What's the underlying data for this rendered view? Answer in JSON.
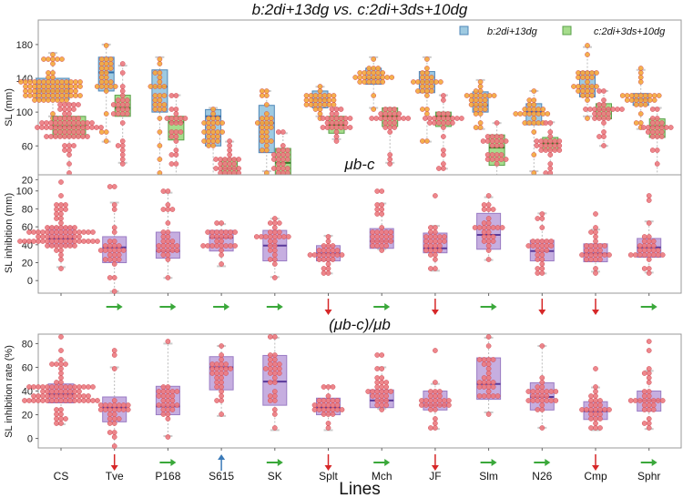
{
  "chart_data": {
    "type": "box",
    "xlabel": "Lines",
    "categories": [
      "CS",
      "Tve",
      "P168",
      "S615",
      "SK",
      "Splt",
      "Mch",
      "JF",
      "Slm",
      "N26",
      "Cmp",
      "Sphr"
    ],
    "colors": {
      "b_box": "#9ecae1",
      "b_edge": "#4f87b8",
      "b_dot": "#f5a83a",
      "c_box": "#a6dc8c",
      "c_edge": "#5aa04a",
      "c_dot": "#ec7a80",
      "purple_box": "#c6aee0",
      "purple_edge": "#9a7cc4",
      "median": "#5a3a9a",
      "up": "#3a7ab8",
      "right": "#3aa83a",
      "down": "#d62728"
    },
    "panels": [
      {
        "title": "b:2di+13dg  vs. c:2di+3ds+10dg",
        "ylabel": "SL (mm)",
        "yticks": [
          20,
          60,
          100,
          140,
          180
        ],
        "ylim": [
          1,
          209
        ],
        "legend": {
          "position": "top-right",
          "entries": [
            "b:2di+13dg",
            "c:2di+3ds+10dg"
          ]
        },
        "series": [
          {
            "name": "b:2di+13dg",
            "boxes": [
              [
                95,
                115,
                125,
                140,
                170
              ],
              [
                65,
                125,
                147,
                165,
                180
              ],
              [
                20,
                100,
                130,
                150,
                165
              ],
              [
                20,
                60,
                95,
                103,
                105
              ],
              [
                30,
                52,
                87,
                108,
                125
              ],
              [
                95,
                105,
                115,
                125,
                130
              ],
              [
                105,
                133,
                140,
                152,
                165
              ],
              [
                65,
                123,
                136,
                148,
                165
              ],
              [
                80,
                100,
                108,
                124,
                138
              ],
              [
                30,
                85,
                100,
                110,
                125
              ],
              [
                95,
                118,
                130,
                148,
                177
              ],
              [
                80,
                108,
                115,
                122,
                150
              ]
            ]
          },
          {
            "name": "c:2di+3ds+10dg",
            "boxes": [
              [
                20,
                70,
                83,
                95,
                110
              ],
              [
                40,
                95,
                105,
                120,
                155
              ],
              [
                20,
                67,
                88,
                95,
                120
              ],
              [
                20,
                25,
                33,
                45,
                65
              ],
              [
                12,
                25,
                40,
                57,
                75
              ],
              [
                68,
                75,
                85,
                95,
                105
              ],
              [
                40,
                83,
                95,
                105,
                105
              ],
              [
                33,
                83,
                95,
                100,
                120
              ],
              [
                12,
                37,
                58,
                73,
                87
              ],
              [
                20,
                55,
                63,
                70,
                88
              ],
              [
                60,
                92,
                103,
                110,
                125
              ],
              [
                20,
                70,
                83,
                92,
                105
              ]
            ]
          }
        ],
        "arrows": [
          [],
          [
            "up",
            "up"
          ],
          [
            "right",
            "right"
          ],
          [
            "down",
            "down"
          ],
          [
            "down",
            "down"
          ],
          [
            "down",
            "right"
          ],
          [
            "up",
            "up"
          ],
          [
            "right",
            "up"
          ],
          [
            "down",
            "down"
          ],
          [
            "down",
            "down"
          ],
          [
            "right",
            "up"
          ],
          [
            "down",
            "right"
          ]
        ]
      },
      {
        "title": "μb-c",
        "ylabel": "SL inhibition (mm)",
        "yticks": [
          0,
          20,
          40,
          60,
          80,
          100
        ],
        "ylim": [
          -14,
          118
        ],
        "boxes": [
          [
            15,
            38,
            47,
            60,
            85
          ],
          [
            -12,
            20,
            37,
            49,
            87
          ],
          [
            3,
            25,
            33,
            54,
            98
          ],
          [
            16,
            33,
            48,
            56,
            63
          ],
          [
            4,
            22,
            39,
            56,
            69
          ],
          [
            8,
            22,
            30,
            39,
            50
          ],
          [
            35,
            36,
            44,
            58,
            86
          ],
          [
            11,
            31,
            36,
            53,
            61
          ],
          [
            23,
            35,
            51,
            75,
            93
          ],
          [
            8,
            22,
            33,
            45,
            75
          ],
          [
            10,
            21,
            30,
            41,
            57
          ],
          [
            9,
            26,
            37,
            47,
            66
          ]
        ],
        "outliers": [
          [
            96,
            108
          ],
          [
            104,
            104
          ],
          [
            100
          ],
          [],
          [],
          [],
          [
            100,
            100
          ],
          [
            96
          ],
          [],
          [],
          [
            73
          ],
          [
            89,
            96
          ]
        ],
        "arrows": [
          "",
          "right",
          "right",
          "right",
          "right",
          "down",
          "right",
          "down",
          "right",
          "down",
          "down",
          "right"
        ]
      },
      {
        "title": "(μb-c)/μb",
        "ylabel": "SL inhibition rate (%)",
        "yticks": [
          0,
          20,
          40,
          60,
          80
        ],
        "ylim": [
          -8,
          88
        ],
        "boxes": [
          [
            12,
            30,
            37,
            46,
            66
          ],
          [
            -8,
            14,
            26,
            35,
            60
          ],
          [
            2,
            20,
            27,
            44,
            80
          ],
          [
            19,
            41,
            60,
            69,
            78
          ],
          [
            7,
            28,
            48,
            70,
            85
          ],
          [
            7,
            20,
            26,
            34,
            44
          ],
          [
            25,
            26,
            32,
            41,
            60
          ],
          [
            8,
            24,
            28,
            40,
            46
          ],
          [
            22,
            33,
            46,
            68,
            85
          ],
          [
            9,
            24,
            35,
            47,
            78
          ],
          [
            7,
            16,
            23,
            31,
            43
          ],
          [
            8,
            23,
            32,
            40,
            57
          ]
        ],
        "outliers": [
          [
            75,
            84
          ],
          [
            72,
            75
          ],
          [],
          [],
          [],
          [],
          [
            69,
            72
          ],
          [
            75
          ],
          [],
          [],
          [
            57
          ],
          [
            75,
            83
          ]
        ],
        "arrows": [
          "",
          "down",
          "right",
          "up",
          "right",
          "down",
          "right",
          "down",
          "right",
          "right",
          "down",
          "right"
        ]
      }
    ]
  }
}
